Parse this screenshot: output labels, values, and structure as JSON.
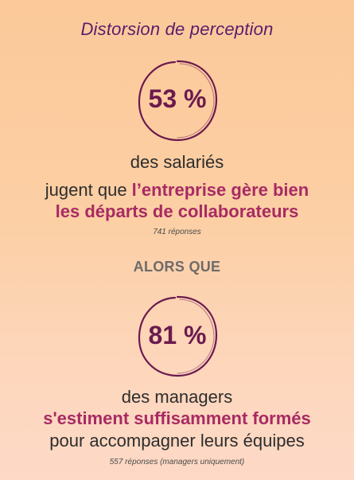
{
  "title": "Distorsion de perception",
  "stat1": {
    "value": "53 %",
    "line1": "des salariés",
    "line2_prefix": "jugent que ",
    "line2_accent": "l’entreprise gère bien",
    "line3_accent": "les départs de collaborateurs",
    "responses": "741 réponses"
  },
  "separator": "ALORS QUE",
  "stat2": {
    "value": "81 %",
    "line1": "des managers",
    "line2_accent": "s'estiment suffisamment formés",
    "line3": "pour accompagner leurs équipes",
    "responses": "557 réponses (managers uniquement)"
  },
  "colors": {
    "circle": "#6b1a4e",
    "accent": "#a82a63",
    "title": "#5a1d6b"
  }
}
